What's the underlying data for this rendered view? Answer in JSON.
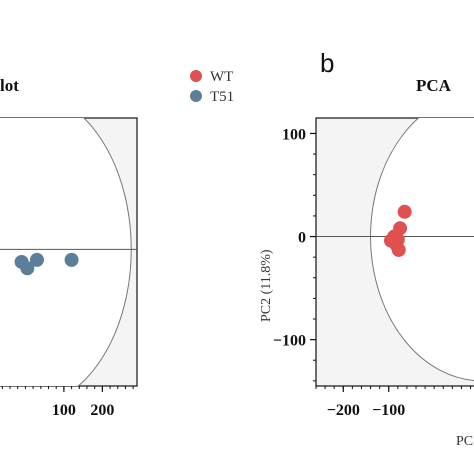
{
  "chart_data": [
    {
      "type": "scatter",
      "title": "lot",
      "xlim": [
        -170,
        290
      ],
      "ylim": [
        -130,
        125
      ],
      "xticks": [
        100,
        200
      ],
      "xtick_labels": [
        "100",
        "200"
      ],
      "x_unit_per_tick": 100,
      "background": "#f4f4f4",
      "reference_line_y": 0,
      "ellipse": {
        "cx": 0,
        "cy": 0,
        "rx": 275,
        "ry": 150
      },
      "series": [
        {
          "name": "T51",
          "color": "#5b7f9b",
          "x": [
            30,
            120,
            -10,
            5
          ],
          "y": [
            -10,
            -10,
            -12,
            -18
          ]
        }
      ]
    },
    {
      "type": "scatter",
      "panel_label": "b",
      "title": "PCA",
      "xlabel": "PC",
      "ylabel": "PC2 (11.8%)",
      "xlim": [
        -260,
        180
      ],
      "ylim": [
        -145,
        115
      ],
      "xticks": [
        -200,
        -100
      ],
      "xtick_labels": [
        "−200",
        "−100"
      ],
      "yticks": [
        -100,
        0,
        100
      ],
      "ytick_labels": [
        "−100",
        "0",
        "100"
      ],
      "background": "#f4f4f4",
      "reference_line_y": 0,
      "ellipse": {
        "cx": 105,
        "cy": 0,
        "rx": 245,
        "ry": 140
      },
      "series": [
        {
          "name": "WT",
          "color": "#e05050",
          "x": [
            -65,
            -75,
            -88,
            -95,
            -83,
            -78,
            -80
          ],
          "y": [
            24,
            8,
            0,
            -4,
            -8,
            -13,
            -3
          ]
        }
      ]
    }
  ],
  "legend": {
    "entries": [
      {
        "label": "WT",
        "color": "#e05050"
      },
      {
        "label": "T51",
        "color": "#5b7f9b"
      }
    ]
  }
}
